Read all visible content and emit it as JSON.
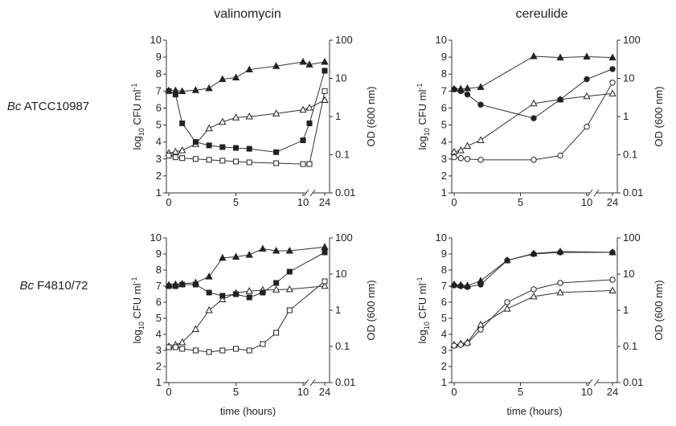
{
  "column_titles": [
    "valinomycin",
    "cereulide"
  ],
  "row_labels": [
    {
      "italic": "Bc",
      "rest": " ATCC10987"
    },
    {
      "italic": "Bc",
      "rest": " F4810/72"
    }
  ],
  "axis_text": {
    "left_main": "log",
    "left_sub": "10",
    "left_tail": " CFU ml",
    "left_sup": "-1",
    "right": "OD (600 nm)",
    "x": "time (hours)"
  },
  "chart_data": [
    {
      "type": "line",
      "panel": "valinomycin / Bc ATCC10987",
      "x_ticks": [
        "0",
        "5",
        "10",
        "24"
      ],
      "xlim": [
        0,
        24
      ],
      "y_left_ticks": [
        "1",
        "2",
        "3",
        "4",
        "5",
        "6",
        "7",
        "8",
        "9",
        "10"
      ],
      "ylim_left": [
        1,
        10
      ],
      "y_right_ticks": [
        "0.01",
        "0.1",
        "1",
        "10",
        "100"
      ],
      "ylim_right": [
        0.01,
        100
      ],
      "y_right_log": true,
      "axis_break_x": true,
      "series": [
        {
          "marker": "filled-triangle",
          "axis": "right",
          "x": [
            0,
            0.5,
            1,
            2,
            3,
            4,
            5,
            6,
            8,
            10,
            12,
            24
          ],
          "y": [
            4.8,
            4.8,
            4.6,
            4.9,
            5.5,
            9.5,
            10.5,
            17,
            21,
            27,
            23,
            27
          ]
        },
        {
          "marker": "open-triangle",
          "axis": "right",
          "x": [
            0,
            0.5,
            1,
            2,
            3,
            4,
            5,
            6,
            8,
            10,
            12,
            24
          ],
          "y": [
            0.11,
            0.12,
            0.13,
            0.19,
            0.49,
            0.72,
            0.94,
            1.0,
            1.2,
            1.5,
            1.7,
            2.7
          ]
        },
        {
          "marker": "filled-square",
          "axis": "left",
          "x": [
            0,
            0.5,
            1,
            2,
            3,
            4,
            5,
            6,
            8,
            10,
            12,
            24
          ],
          "y": [
            7.0,
            6.8,
            5.1,
            4.0,
            3.8,
            3.7,
            3.65,
            3.6,
            3.4,
            4.1,
            5.1,
            8.2
          ]
        },
        {
          "marker": "open-square",
          "axis": "left",
          "x": [
            0,
            0.5,
            1,
            2,
            3,
            4,
            5,
            6,
            8,
            10,
            12,
            24
          ],
          "y": [
            3.2,
            3.1,
            3.05,
            3.0,
            2.95,
            2.9,
            2.85,
            2.8,
            2.75,
            2.7,
            2.7,
            7.0
          ]
        }
      ]
    },
    {
      "type": "line",
      "panel": "cereulide / Bc ATCC10987",
      "x_ticks": [
        "0",
        "5",
        "10",
        "24"
      ],
      "xlim": [
        0,
        24
      ],
      "y_left_ticks": [
        "1",
        "2",
        "3",
        "4",
        "5",
        "6",
        "7",
        "8",
        "9",
        "10"
      ],
      "ylim_left": [
        1,
        10
      ],
      "y_right_ticks": [
        "0.01",
        "0.1",
        "1",
        "10",
        "100"
      ],
      "ylim_right": [
        0.01,
        100
      ],
      "y_right_log": true,
      "axis_break_x": true,
      "series": [
        {
          "marker": "filled-triangle",
          "axis": "right",
          "x": [
            0,
            0.5,
            1,
            2,
            6,
            8,
            10,
            24
          ],
          "y": [
            5.3,
            5.3,
            5.5,
            5.9,
            38,
            35,
            37,
            35
          ]
        },
        {
          "marker": "open-triangle",
          "axis": "right",
          "x": [
            0,
            0.5,
            1,
            2,
            6,
            8,
            10,
            24
          ],
          "y": [
            0.12,
            0.13,
            0.17,
            0.24,
            2.2,
            2.8,
            3.4,
            4.0
          ]
        },
        {
          "marker": "filled-circle",
          "axis": "left",
          "x": [
            0,
            0.5,
            1,
            2,
            6,
            8,
            10,
            24
          ],
          "y": [
            7.1,
            7.0,
            6.8,
            6.2,
            5.4,
            6.5,
            7.7,
            8.3
          ]
        },
        {
          "marker": "open-circle",
          "axis": "left",
          "x": [
            0,
            0.5,
            1,
            2,
            6,
            8,
            10,
            24
          ],
          "y": [
            3.1,
            3.05,
            3.0,
            2.95,
            2.95,
            3.2,
            4.9,
            7.5
          ]
        }
      ]
    },
    {
      "type": "line",
      "panel": "valinomycin / Bc F4810/72",
      "x_ticks": [
        "0",
        "5",
        "10",
        "24"
      ],
      "xlim": [
        0,
        24
      ],
      "y_left_ticks": [
        "1",
        "2",
        "3",
        "4",
        "5",
        "6",
        "7",
        "8",
        "9",
        "10"
      ],
      "ylim_left": [
        1,
        10
      ],
      "y_right_ticks": [
        "0.01",
        "0.1",
        "1",
        "10",
        "100"
      ],
      "ylim_right": [
        0.01,
        100
      ],
      "y_right_log": true,
      "axis_break_x": true,
      "series": [
        {
          "marker": "filled-triangle",
          "axis": "right",
          "x": [
            0,
            0.5,
            1,
            2,
            3,
            4,
            5,
            6,
            7,
            8,
            9,
            24
          ],
          "y": [
            5.0,
            5.2,
            5.4,
            5.8,
            8.5,
            28,
            30,
            34,
            50,
            44,
            44,
            56
          ]
        },
        {
          "marker": "open-triangle",
          "axis": "right",
          "x": [
            0,
            0.5,
            1,
            2,
            3,
            4,
            5,
            6,
            7,
            8,
            9,
            24
          ],
          "y": [
            0.1,
            0.11,
            0.13,
            0.3,
            1.0,
            2.0,
            3.0,
            3.4,
            3.6,
            3.7,
            3.8,
            4.7
          ]
        },
        {
          "marker": "filled-square",
          "axis": "left",
          "x": [
            0,
            0.5,
            1,
            2,
            3,
            4,
            5,
            6,
            7,
            8,
            9,
            24
          ],
          "y": [
            7.0,
            7.0,
            7.1,
            7.1,
            6.6,
            6.4,
            6.5,
            6.3,
            6.6,
            7.2,
            7.9,
            9.1
          ]
        },
        {
          "marker": "open-square",
          "axis": "left",
          "x": [
            0,
            0.5,
            1,
            2,
            3,
            4,
            5,
            6,
            7,
            8,
            9,
            24
          ],
          "y": [
            3.2,
            3.2,
            3.1,
            3.0,
            2.9,
            3.0,
            3.1,
            3.0,
            3.4,
            4.1,
            5.5,
            7.3
          ]
        }
      ]
    },
    {
      "type": "line",
      "panel": "cereulide / Bc F4810/72",
      "x_ticks": [
        "0",
        "5",
        "10",
        "24"
      ],
      "xlim": [
        0,
        24
      ],
      "y_left_ticks": [
        "1",
        "2",
        "3",
        "4",
        "5",
        "6",
        "7",
        "8",
        "9",
        "10"
      ],
      "ylim_left": [
        1,
        10
      ],
      "y_right_ticks": [
        "0.01",
        "0.1",
        "1",
        "10",
        "100"
      ],
      "ylim_right": [
        0.01,
        100
      ],
      "y_right_log": true,
      "axis_break_x": true,
      "series": [
        {
          "marker": "filled-triangle",
          "axis": "right",
          "x": [
            0,
            0.5,
            1,
            2,
            4,
            6,
            8,
            24
          ],
          "y": [
            5.2,
            5.0,
            4.8,
            6.5,
            24,
            37,
            42,
            40
          ]
        },
        {
          "marker": "open-triangle",
          "axis": "right",
          "x": [
            0,
            0.5,
            1,
            2,
            4,
            6,
            8,
            24
          ],
          "y": [
            0.11,
            0.12,
            0.13,
            0.4,
            1.1,
            2.4,
            3.1,
            3.5
          ]
        },
        {
          "marker": "filled-circle",
          "axis": "left",
          "x": [
            0,
            0.5,
            1,
            2,
            4,
            6,
            8,
            24
          ],
          "y": [
            7.05,
            7.0,
            6.95,
            7.1,
            8.6,
            9.0,
            9.1,
            9.1
          ]
        },
        {
          "marker": "open-circle",
          "axis": "left",
          "x": [
            0,
            0.5,
            1,
            2,
            4,
            6,
            8,
            24
          ],
          "y": [
            3.3,
            3.35,
            3.45,
            4.3,
            6.0,
            6.8,
            7.2,
            7.4
          ]
        }
      ]
    }
  ]
}
